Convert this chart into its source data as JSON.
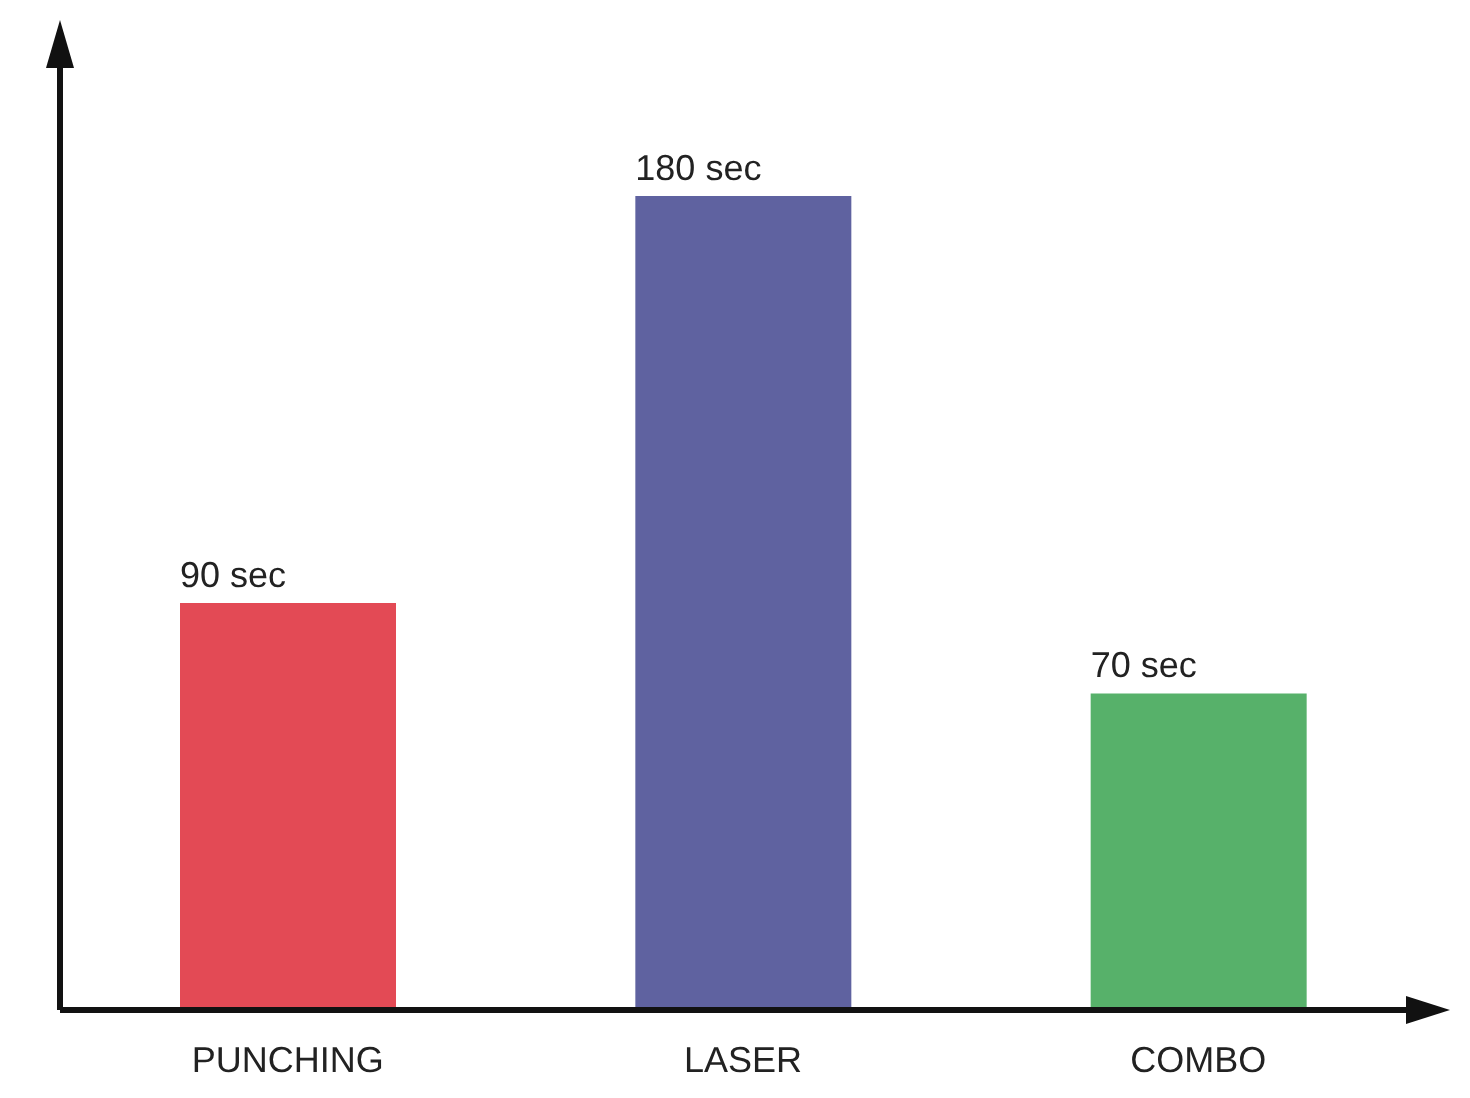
{
  "chart_data": {
    "type": "bar",
    "categories": [
      "PUNCHING",
      "LASER",
      "COMBO"
    ],
    "values": [
      90,
      180,
      70
    ],
    "colors": [
      "#e34a55",
      "#5f62a0",
      "#57b16a"
    ],
    "value_labels": [
      "90 sec",
      "180 sec",
      "70 sec"
    ]
  }
}
